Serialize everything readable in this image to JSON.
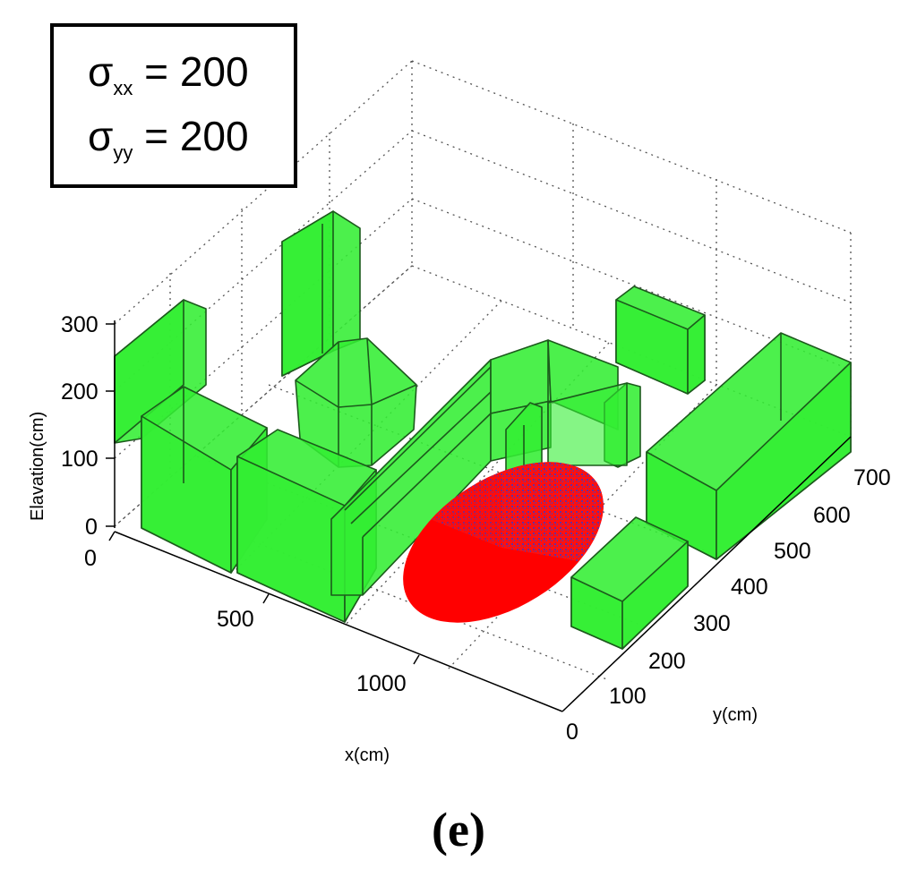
{
  "chart_data": {
    "type": "3d-scene",
    "xlabel": "x(cm)",
    "ylabel": "y(cm)",
    "zlabel": "Elavation(cm)",
    "x_ticks": [
      "0",
      "500",
      "1000"
    ],
    "y_ticks": [
      "0",
      "100",
      "200",
      "300",
      "400",
      "500",
      "600",
      "700"
    ],
    "z_ticks": [
      "0",
      "100",
      "200",
      "300"
    ],
    "grid": "dotted",
    "annotation": {
      "line1": {
        "symbol": "σ",
        "sub": "xx",
        "rest": " = 200"
      },
      "line2": {
        "symbol": "σ",
        "sub": "yy",
        "rest": " = 200"
      }
    },
    "parameters": {
      "sigma_xx": 200,
      "sigma_yy": 200
    },
    "colors": {
      "buildings": "#33ee33",
      "ellipse": "#ff0000",
      "ellipse_speckle": "#7a2a9a"
    }
  },
  "panel_label": "(e)"
}
